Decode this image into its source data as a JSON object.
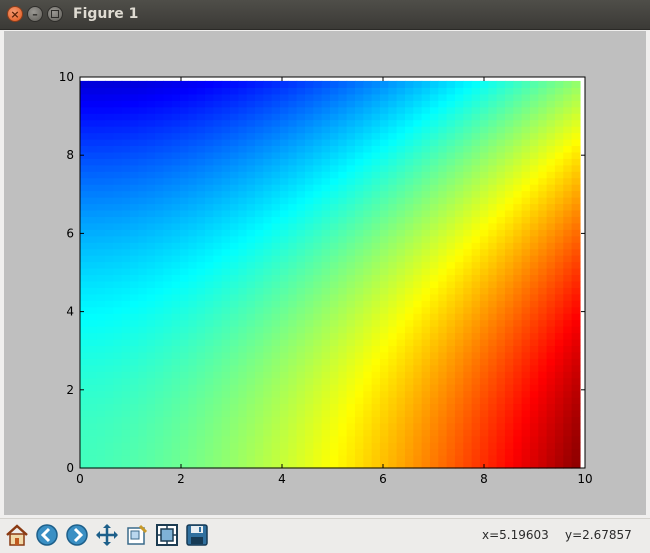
{
  "window": {
    "title": "Figure 1"
  },
  "toolbar": {
    "buttons": [
      {
        "name": "home-icon"
      },
      {
        "name": "back-icon"
      },
      {
        "name": "forward-icon"
      },
      {
        "name": "pan-icon"
      },
      {
        "name": "zoom-icon"
      },
      {
        "name": "subplots-icon"
      },
      {
        "name": "save-icon"
      }
    ]
  },
  "status": {
    "x_readout": "x=5.19603",
    "y_readout": "y=2.67857"
  },
  "chart_data": {
    "type": "heatmap",
    "colormap": "jet",
    "x_ticks": [
      "0",
      "2",
      "4",
      "6",
      "8",
      "10"
    ],
    "y_ticks": [
      "0",
      "2",
      "4",
      "6",
      "8",
      "10"
    ],
    "xlim": [
      0,
      10
    ],
    "ylim": [
      0,
      10
    ],
    "data_extent": [
      0,
      9.9,
      0,
      9.9
    ],
    "grid": false,
    "colors": {
      "figure_bg": "#bfbfbf",
      "axes_bg": "#ffffff"
    }
  }
}
